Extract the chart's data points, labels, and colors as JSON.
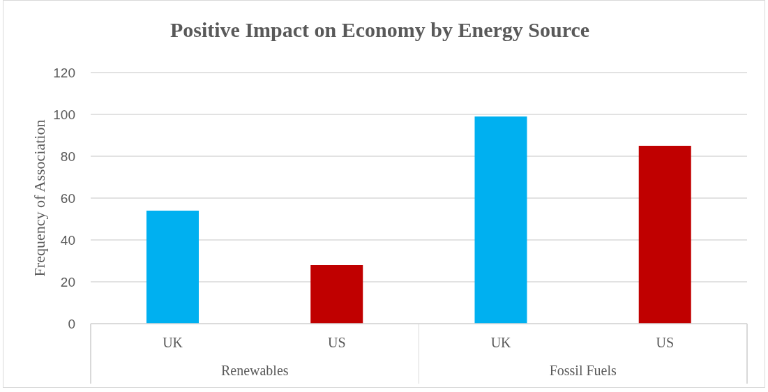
{
  "chart_data": {
    "type": "bar",
    "title": "Positive Impact on Economy by Energy Source",
    "ylabel": "Frequency of Association",
    "categories": [
      "UK",
      "US",
      "UK",
      "US"
    ],
    "values": [
      54,
      28,
      99,
      85
    ],
    "colors": [
      "#00b0f0",
      "#c00000",
      "#00b0f0",
      "#c00000"
    ],
    "ylim": [
      0,
      120
    ],
    "yticks": [
      0,
      20,
      40,
      60,
      80,
      100,
      120
    ],
    "grid": "y",
    "annotations": [
      "Renewables",
      "Fossil Fuels"
    ]
  }
}
